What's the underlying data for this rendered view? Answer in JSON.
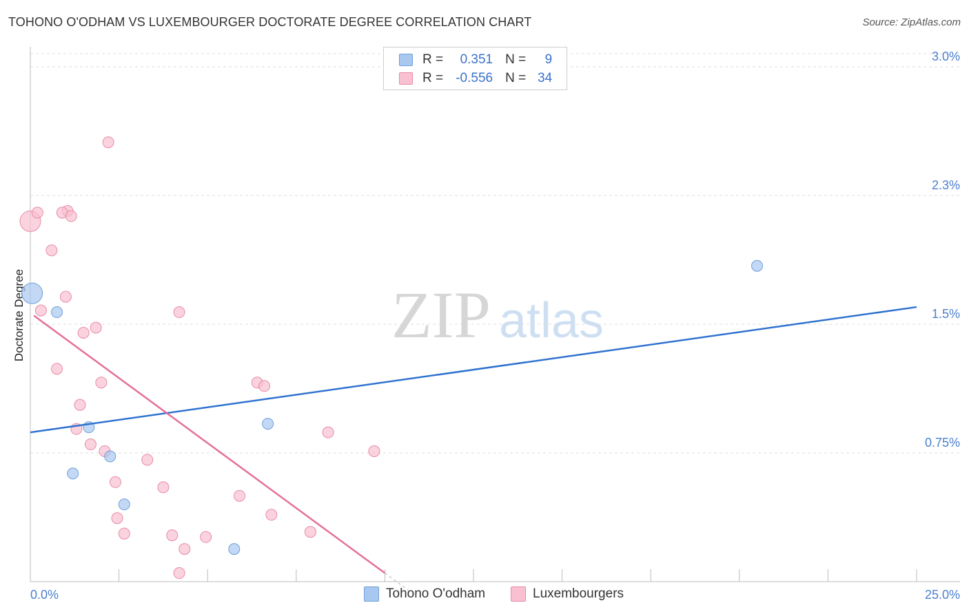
{
  "header": {
    "title": "TOHONO O'ODHAM VS LUXEMBOURGER DOCTORATE DEGREE CORRELATION CHART",
    "source": "Source: ZipAtlas.com"
  },
  "watermark": {
    "zip": "ZIP",
    "atlas": "atlas"
  },
  "legend": {
    "rows": [
      {
        "r_label": "R =",
        "r_value": "0.351",
        "n_label": "N =",
        "n_value": "9",
        "color": "#a8c8f0",
        "border": "#6f9fd8"
      },
      {
        "r_label": "R =",
        "r_value": "-0.556",
        "n_label": "N =",
        "n_value": "34",
        "color": "#f8c0d0",
        "border": "#e88aa8"
      }
    ]
  },
  "bottom_legend": [
    {
      "label": "Tohono O'odham",
      "color": "#a8c8f0",
      "border": "#6f9fd8"
    },
    {
      "label": "Luxembourgers",
      "color": "#f8c0d0",
      "border": "#e88aa8"
    }
  ],
  "colors": {
    "blue_line": "#2f72d0",
    "pink_line": "#e56f98",
    "blue_fill": "#a8c8f0",
    "pink_fill": "#f8c0d0",
    "grid": "#dddddd"
  },
  "chart_data": {
    "type": "scatter",
    "title": "TOHONO O'ODHAM VS LUXEMBOURGER DOCTORATE DEGREE CORRELATION CHART",
    "xlabel": "",
    "ylabel": "Doctorate Degree",
    "xlim": [
      0,
      25
    ],
    "ylim": [
      0,
      3.1
    ],
    "x_tick_labels": {
      "left": "0.0%",
      "right": "25.0%"
    },
    "y_ticks": [
      {
        "value": 0.75,
        "label": "0.75%"
      },
      {
        "value": 1.5,
        "label": "1.5%"
      },
      {
        "value": 2.25,
        "label": "2.3%"
      },
      {
        "value": 3.0,
        "label": "3.0%"
      }
    ],
    "series": [
      {
        "name": "Tohono O'odham",
        "R": 0.351,
        "N": 9,
        "trend": {
          "x0": 0,
          "y0": 0.87,
          "x1": 25,
          "y1": 1.6
        },
        "points": [
          {
            "x": 0.05,
            "y": 1.68,
            "size": "large"
          },
          {
            "x": 0.75,
            "y": 1.57
          },
          {
            "x": 1.65,
            "y": 0.9
          },
          {
            "x": 2.25,
            "y": 0.73
          },
          {
            "x": 1.2,
            "y": 0.63
          },
          {
            "x": 2.65,
            "y": 0.45
          },
          {
            "x": 6.7,
            "y": 0.92
          },
          {
            "x": 5.75,
            "y": 0.19
          },
          {
            "x": 20.5,
            "y": 1.84
          }
        ]
      },
      {
        "name": "Luxembourgers",
        "R": -0.556,
        "N": 34,
        "trend": {
          "x0": 0.1,
          "y0": 1.55,
          "x1": 10.0,
          "y1": 0.05,
          "dash_to_x": 10.7
        },
        "points": [
          {
            "x": 0.0,
            "y": 2.1,
            "size": "large"
          },
          {
            "x": 0.2,
            "y": 2.15
          },
          {
            "x": 1.05,
            "y": 2.16
          },
          {
            "x": 0.9,
            "y": 2.15
          },
          {
            "x": 1.15,
            "y": 2.13
          },
          {
            "x": 2.2,
            "y": 2.56
          },
          {
            "x": 0.6,
            "y": 1.93
          },
          {
            "x": 1.0,
            "y": 1.66
          },
          {
            "x": 0.3,
            "y": 1.58
          },
          {
            "x": 4.2,
            "y": 1.57
          },
          {
            "x": 1.5,
            "y": 1.45
          },
          {
            "x": 1.85,
            "y": 1.48
          },
          {
            "x": 0.75,
            "y": 1.24
          },
          {
            "x": 2.0,
            "y": 1.16
          },
          {
            "x": 6.4,
            "y": 1.16
          },
          {
            "x": 6.6,
            "y": 1.14
          },
          {
            "x": 1.4,
            "y": 1.03
          },
          {
            "x": 1.3,
            "y": 0.89
          },
          {
            "x": 1.7,
            "y": 0.8
          },
          {
            "x": 2.1,
            "y": 0.76
          },
          {
            "x": 3.3,
            "y": 0.71
          },
          {
            "x": 8.4,
            "y": 0.87
          },
          {
            "x": 9.7,
            "y": 0.76
          },
          {
            "x": 2.4,
            "y": 0.58
          },
          {
            "x": 3.75,
            "y": 0.55
          },
          {
            "x": 5.9,
            "y": 0.5
          },
          {
            "x": 2.45,
            "y": 0.37
          },
          {
            "x": 6.8,
            "y": 0.39
          },
          {
            "x": 2.65,
            "y": 0.28
          },
          {
            "x": 4.0,
            "y": 0.27
          },
          {
            "x": 4.95,
            "y": 0.26
          },
          {
            "x": 7.9,
            "y": 0.29
          },
          {
            "x": 4.35,
            "y": 0.19
          },
          {
            "x": 4.2,
            "y": 0.05
          }
        ]
      }
    ]
  }
}
